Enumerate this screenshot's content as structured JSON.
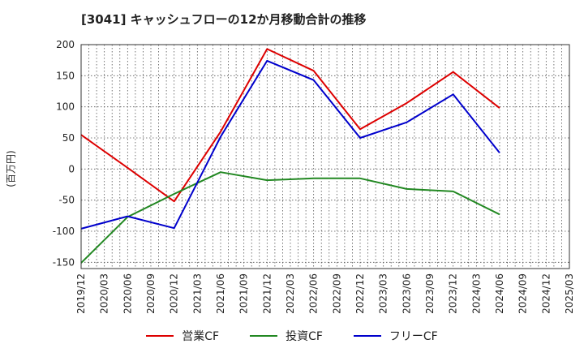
{
  "chart_data": {
    "type": "line",
    "title": "[3041]  キャッシュフローの12か月移動合計の推移",
    "ylabel": "(百万円)",
    "xlabel": "",
    "ylim": [
      -160,
      200
    ],
    "yticks": [
      200,
      150,
      100,
      50,
      0,
      -50,
      -100,
      -150
    ],
    "x": [
      "2019/12",
      "2020/03",
      "2020/06",
      "2020/09",
      "2020/12",
      "2021/03",
      "2021/06",
      "2021/09",
      "2021/12",
      "2022/03",
      "2022/06",
      "2022/09",
      "2022/12",
      "2023/03",
      "2023/06",
      "2023/09",
      "2023/12",
      "2024/03",
      "2024/06",
      "2024/09",
      "2024/12",
      "2025/03"
    ],
    "series": [
      {
        "name": "営業CF",
        "color": "#dd0000",
        "values": [
          55,
          null,
          2,
          null,
          -52,
          null,
          60,
          null,
          193,
          null,
          158,
          null,
          64,
          null,
          106,
          null,
          156,
          null,
          98,
          null,
          null,
          null
        ]
      },
      {
        "name": "投資CF",
        "color": "#228822",
        "values": [
          -151,
          null,
          -77,
          null,
          -40,
          null,
          -5,
          null,
          -18,
          null,
          -15,
          null,
          -15,
          null,
          -32,
          null,
          -36,
          null,
          -73,
          null,
          null,
          null
        ]
      },
      {
        "name": "フリーCF",
        "color": "#0000cc",
        "values": [
          -96,
          null,
          -76,
          null,
          -95,
          null,
          52,
          null,
          174,
          null,
          143,
          null,
          50,
          null,
          75,
          null,
          120,
          null,
          26,
          null,
          null,
          null
        ]
      }
    ],
    "grid": true,
    "legend": "bottom"
  }
}
